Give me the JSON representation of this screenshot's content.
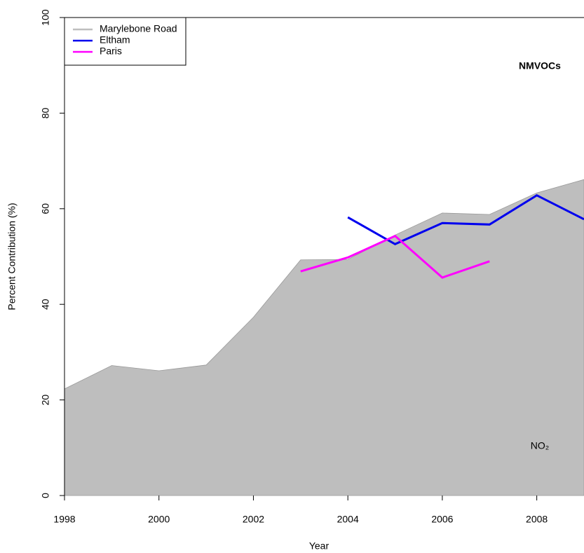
{
  "chart_data": {
    "type": "line",
    "xlabel": "Year",
    "ylabel": "Percent Contribution (%)",
    "annotations": [
      "NMVOCs",
      "NO₂"
    ],
    "x": [
      1998,
      1999,
      2000,
      2001,
      2002,
      2003,
      2004,
      2005,
      2006,
      2007,
      2008,
      2009
    ],
    "series": [
      {
        "name": "Marylebone Road",
        "type": "area",
        "color": "#bebebe",
        "values": [
          22.3,
          27.2,
          26.1,
          27.3,
          37.3,
          49.3,
          49.4,
          54.5,
          59.1,
          58.8,
          63.3,
          66.1
        ]
      },
      {
        "name": "Eltham",
        "type": "line",
        "color": "#0000ee",
        "values": [
          null,
          null,
          null,
          null,
          null,
          null,
          58.2,
          52.6,
          57.0,
          56.7,
          62.8,
          57.8
        ]
      },
      {
        "name": "Paris",
        "type": "line",
        "color": "#ff00ff",
        "values": [
          null,
          null,
          null,
          null,
          null,
          46.9,
          49.8,
          54.3,
          45.6,
          49.0,
          null,
          null
        ]
      }
    ],
    "xlim": [
      1998,
      2009
    ],
    "xticks": [
      1998,
      2000,
      2002,
      2004,
      2006,
      2008
    ],
    "ylim": [
      0,
      100
    ],
    "yticks": [
      0,
      20,
      40,
      60,
      80,
      100
    ],
    "legend": "top-left"
  }
}
